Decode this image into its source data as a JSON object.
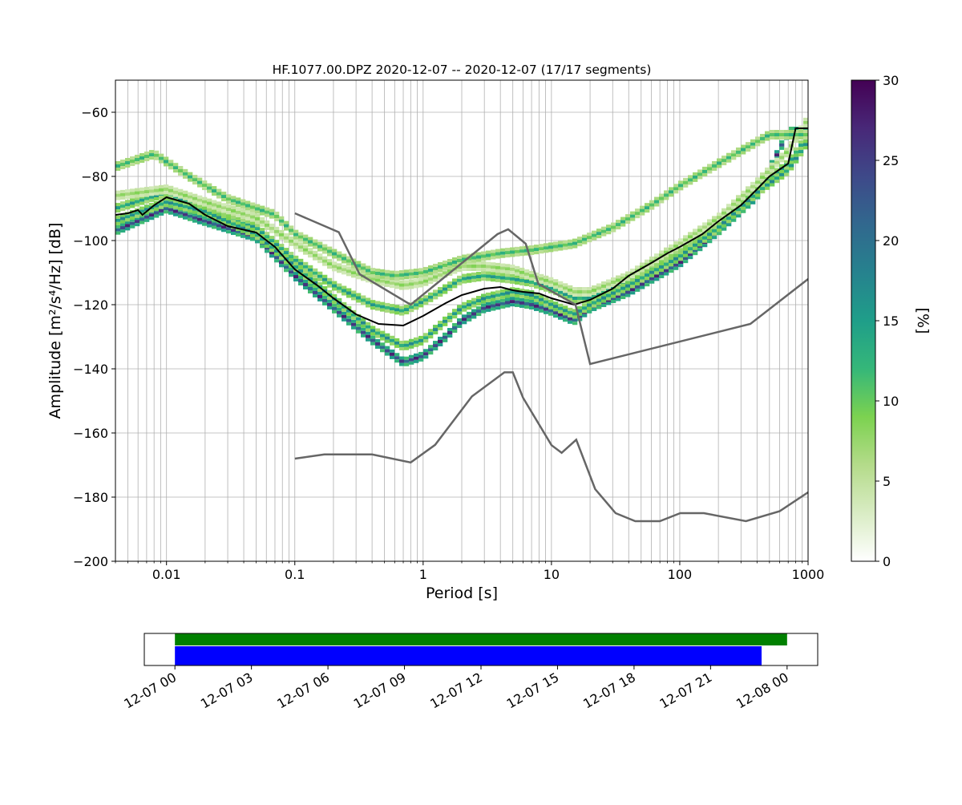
{
  "chart_data": {
    "type": "heatmap",
    "title": "HF.1077.00.DPZ   2020-12-07 -- 2020-12-07  (17/17 segments)",
    "xlabel": "Period [s]",
    "ylabel": "Amplitude [m²/s⁴/Hz] [dB]",
    "xscale": "log",
    "xlim": [
      0.004,
      1000
    ],
    "ylim": [
      -200,
      -50
    ],
    "grid": true,
    "x_ticks": [
      0.01,
      0.1,
      1,
      10,
      100,
      1000
    ],
    "x_tick_labels": [
      "0.01",
      "0.1",
      "1",
      "10",
      "100",
      "1000"
    ],
    "y_ticks": [
      -200,
      -180,
      -160,
      -140,
      -120,
      -100,
      -80,
      -60
    ],
    "y_tick_labels": [
      "−200",
      "−180",
      "−160",
      "−140",
      "−120",
      "−100",
      "−80",
      "−60"
    ],
    "colorbar": {
      "label": "[%]",
      "colormap": "viridis_r",
      "range": [
        0,
        30
      ],
      "ticks": [
        0,
        5,
        10,
        15,
        20,
        25,
        30
      ],
      "tick_labels": [
        "0",
        "5",
        "10",
        "15",
        "20",
        "25",
        "30"
      ]
    },
    "series": [
      {
        "kind": "mean-psd",
        "color": "#000000",
        "x": [
          0.004,
          0.005,
          0.006,
          0.0065,
          0.008,
          0.01,
          0.015,
          0.02,
          0.03,
          0.05,
          0.07,
          0.1,
          0.15,
          0.2,
          0.3,
          0.45,
          0.7,
          1.0,
          1.5,
          2.0,
          3.0,
          4.0,
          5.0,
          6.0,
          8.0,
          10,
          15,
          20,
          30,
          40,
          60,
          80,
          100,
          150,
          200,
          300,
          400,
          500,
          700,
          800,
          1000
        ],
        "y": [
          -92,
          -91.5,
          -90.5,
          -92,
          -89,
          -86.5,
          -88.5,
          -92,
          -95.5,
          -97.5,
          -102,
          -109,
          -114,
          -118,
          -123,
          -126,
          -126.5,
          -123.5,
          -119.5,
          -117,
          -115,
          -114.5,
          -115.5,
          -116,
          -116.5,
          -118,
          -120,
          -118.5,
          -115,
          -111,
          -107,
          -104,
          -102,
          -98,
          -94,
          -89,
          -84,
          -80,
          -76,
          -65,
          -65
        ]
      },
      {
        "kind": "noise-model-high",
        "color": "#666666",
        "x": [
          0.1,
          0.22,
          0.32,
          0.8,
          3.8,
          4.6,
          6.3,
          7.9,
          15.4,
          20,
          354.8,
          1000
        ],
        "y": [
          -91.5,
          -97.4,
          -110.5,
          -120,
          -98,
          -96.5,
          -101,
          -113.5,
          -120,
          -138.5,
          -126,
          -112
        ]
      },
      {
        "kind": "noise-model-low",
        "color": "#666666",
        "x": [
          0.1,
          0.17,
          0.4,
          0.8,
          1.24,
          2.4,
          4.3,
          5.0,
          6.0,
          10,
          12,
          15.6,
          21.9,
          31.6,
          45,
          70,
          101,
          154,
          328,
          600,
          1000
        ],
        "y": [
          -168,
          -166.7,
          -166.7,
          -169.2,
          -163.7,
          -148.6,
          -141.1,
          -141.1,
          -149,
          -163.8,
          -166.2,
          -162.1,
          -177.5,
          -185,
          -187.5,
          -187.5,
          -185,
          -185,
          -187.5,
          -184.4,
          -178.5
        ]
      }
    ],
    "psd_bands": [
      {
        "x": [
          0.004,
          0.01,
          0.02,
          0.05,
          0.1,
          0.2,
          0.4,
          0.7,
          1.0,
          1.5,
          2.0,
          3.0,
          5.0,
          7.0,
          10,
          15,
          20,
          40,
          100,
          200,
          400,
          700,
          1000
        ],
        "y": [
          -97,
          -90,
          -94,
          -99,
          -111,
          -121,
          -131,
          -138,
          -136,
          -130,
          -125,
          -121,
          -119,
          -120,
          -122,
          -125,
          -121,
          -116,
          -107,
          -97,
          -86,
          -66,
          -66
        ],
        "weight": 0.95
      },
      {
        "x": [
          0.004,
          0.01,
          0.02,
          0.05,
          0.1,
          0.2,
          0.4,
          0.7,
          1.0,
          1.5,
          2.0,
          3.0,
          5.0,
          7.0,
          10,
          15,
          20,
          40,
          100,
          200,
          400,
          700,
          1000
        ],
        "y": [
          -90,
          -85,
          -91,
          -96,
          -106,
          -114,
          -120,
          -122,
          -119,
          -115,
          -112,
          -111,
          -112,
          -113,
          -115,
          -118,
          -118,
          -113,
          -104,
          -95,
          -84,
          -76,
          -67
        ],
        "weight": 0.55
      },
      {
        "x": [
          0.004,
          0.01,
          0.02,
          0.05,
          0.1,
          0.2,
          0.4,
          0.7,
          1.0,
          1.5,
          2.0,
          3.0,
          5.0,
          7.0,
          10,
          15,
          20,
          40,
          100,
          200,
          400,
          700,
          1000
        ],
        "y": [
          -86,
          -84,
          -88,
          -93,
          -101,
          -108,
          -112,
          -114,
          -113,
          -110,
          -108,
          -108,
          -109,
          -111,
          -113,
          -116,
          -116,
          -111,
          -101,
          -93,
          -82,
          -72,
          -62
        ],
        "weight": 0.3
      },
      {
        "x": [
          0.004,
          0.008,
          0.015,
          0.03,
          0.07,
          0.1,
          0.2,
          0.4,
          0.6,
          1.0,
          2.0,
          4.0,
          7.0,
          15,
          30,
          60,
          100,
          200,
          500,
          1000
        ],
        "y": [
          -77,
          -73,
          -80,
          -87,
          -92,
          -98,
          -104,
          -110,
          -111,
          -110,
          -106,
          -104,
          -103,
          -101,
          -96,
          -89,
          -83,
          -76,
          -67,
          -67
        ],
        "weight": 0.45
      },
      {
        "x": [
          0.004,
          0.01,
          0.02,
          0.05,
          0.1,
          0.2,
          0.4,
          0.7,
          1.0,
          1.5,
          2.0,
          3.0,
          5.0,
          7.0,
          10,
          15,
          20,
          40,
          100,
          200,
          400,
          700,
          1000
        ],
        "y": [
          -94,
          -88,
          -91,
          -98,
          -108,
          -118,
          -128,
          -133,
          -131,
          -125,
          -121,
          -118,
          -116,
          -117,
          -120,
          -123,
          -120,
          -114,
          -105,
          -96,
          -85,
          -78,
          -69
        ],
        "weight": 0.6
      }
    ]
  },
  "timeline": {
    "tick_labels": [
      "12-07 00",
      "12-07 03",
      "12-07 06",
      "12-07 09",
      "12-07 12",
      "12-07 15",
      "12-07 18",
      "12-07 21",
      "12-08 00"
    ],
    "tick_hours": [
      0,
      3,
      6,
      9,
      12,
      15,
      18,
      21,
      24
    ],
    "range_hours": [
      -1.2,
      25.2
    ],
    "bars": [
      {
        "start_hour": 0,
        "end_hour": 24,
        "color": "#008000",
        "row": "top"
      },
      {
        "start_hour": 0,
        "end_hour": 23,
        "color": "#0000ff",
        "row": "bottom"
      }
    ]
  }
}
